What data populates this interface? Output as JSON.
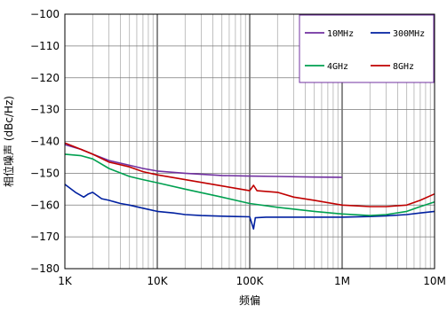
{
  "chart_data": {
    "type": "line",
    "xscale": "log",
    "xlim": [
      1000,
      10000000
    ],
    "ylim": [
      -180,
      -100
    ],
    "xticks": [
      1000,
      10000,
      100000,
      1000000,
      10000000
    ],
    "xtick_labels": [
      "1K",
      "10K",
      "100K",
      "1M",
      "10M"
    ],
    "yticks": [
      -100,
      -110,
      -120,
      -130,
      -140,
      -150,
      -160,
      -170,
      -180
    ],
    "ytick_labels": [
      "−100",
      "−110",
      "−120",
      "−130",
      "−140",
      "−150",
      "−160",
      "−170",
      "−180"
    ],
    "xlabel": "频偏",
    "ylabel": "相位噪声 (dBc/Hz)",
    "grid": "major and minor vertical, major horizontal",
    "legend_position": "top-right",
    "series": [
      {
        "name": "10MHz",
        "color": "#7030a0",
        "points": [
          [
            1000,
            -141
          ],
          [
            1500,
            -142.5
          ],
          [
            2000,
            -144
          ],
          [
            3000,
            -146
          ],
          [
            5000,
            -147.5
          ],
          [
            7000,
            -148.5
          ],
          [
            10000,
            -149.3
          ],
          [
            20000,
            -150
          ],
          [
            50000,
            -150.7
          ],
          [
            100000,
            -150.9
          ],
          [
            200000,
            -151
          ],
          [
            500000,
            -151.2
          ],
          [
            1000000,
            -151.3
          ]
        ]
      },
      {
        "name": "300MHz",
        "color": "#0020a0",
        "points": [
          [
            1000,
            -153.5
          ],
          [
            1300,
            -156
          ],
          [
            1600,
            -157.5
          ],
          [
            1800,
            -156.5
          ],
          [
            2000,
            -156
          ],
          [
            2500,
            -158
          ],
          [
            3000,
            -158.5
          ],
          [
            4000,
            -159.5
          ],
          [
            5000,
            -160
          ],
          [
            7000,
            -161
          ],
          [
            10000,
            -162
          ],
          [
            15000,
            -162.5
          ],
          [
            20000,
            -163
          ],
          [
            30000,
            -163.3
          ],
          [
            50000,
            -163.5
          ],
          [
            70000,
            -163.6
          ],
          [
            100000,
            -163.7
          ],
          [
            110000,
            -167.5
          ],
          [
            115000,
            -164
          ],
          [
            150000,
            -163.8
          ],
          [
            200000,
            -163.8
          ],
          [
            500000,
            -163.8
          ],
          [
            1000000,
            -163.8
          ],
          [
            2000000,
            -163.6
          ],
          [
            3000000,
            -163.4
          ],
          [
            5000000,
            -163
          ],
          [
            7000000,
            -162.5
          ],
          [
            10000000,
            -162
          ]
        ]
      },
      {
        "name": "4GHz",
        "color": "#00a050",
        "points": [
          [
            1000,
            -144
          ],
          [
            1500,
            -144.5
          ],
          [
            2000,
            -145.5
          ],
          [
            3000,
            -148.5
          ],
          [
            5000,
            -151
          ],
          [
            7000,
            -152
          ],
          [
            10000,
            -153
          ],
          [
            20000,
            -155
          ],
          [
            50000,
            -157.5
          ],
          [
            100000,
            -159.5
          ],
          [
            200000,
            -160.7
          ],
          [
            500000,
            -162
          ],
          [
            1000000,
            -162.8
          ],
          [
            2000000,
            -163.3
          ],
          [
            3000000,
            -163
          ],
          [
            5000000,
            -162
          ],
          [
            7000000,
            -160.5
          ],
          [
            10000000,
            -159
          ]
        ]
      },
      {
        "name": "8GHz",
        "color": "#c00000",
        "points": [
          [
            1000,
            -140.5
          ],
          [
            1500,
            -142.5
          ],
          [
            2000,
            -144
          ],
          [
            3000,
            -146.5
          ],
          [
            5000,
            -148
          ],
          [
            7000,
            -149.5
          ],
          [
            10000,
            -150.5
          ],
          [
            20000,
            -152
          ],
          [
            50000,
            -154
          ],
          [
            100000,
            -155.5
          ],
          [
            110000,
            -153.8
          ],
          [
            120000,
            -155.5
          ],
          [
            200000,
            -156
          ],
          [
            300000,
            -157.5
          ],
          [
            500000,
            -158.5
          ],
          [
            1000000,
            -160
          ],
          [
            2000000,
            -160.5
          ],
          [
            3000000,
            -160.5
          ],
          [
            5000000,
            -160
          ],
          [
            7000000,
            -158.5
          ],
          [
            10000000,
            -156.5
          ]
        ]
      }
    ]
  }
}
